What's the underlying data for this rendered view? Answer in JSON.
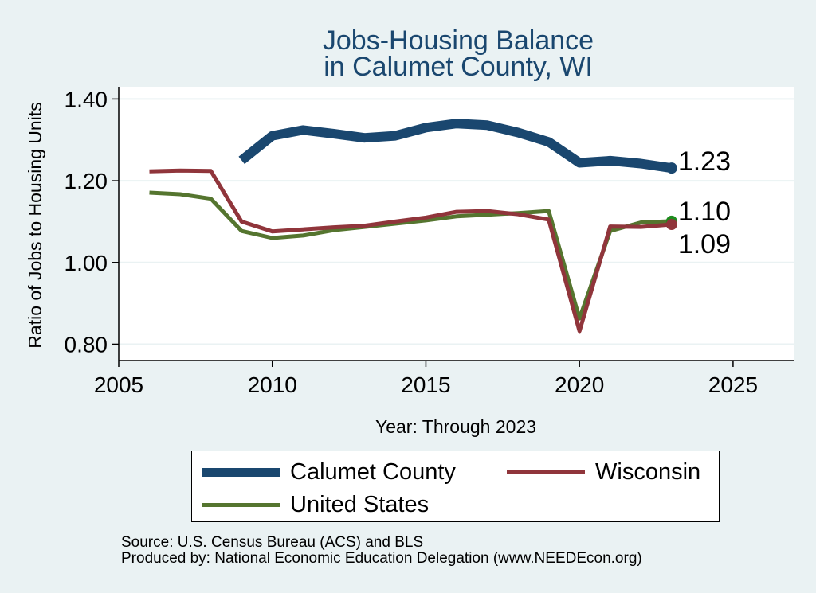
{
  "title_lines": [
    "Jobs-Housing Balance",
    "in Calumet County, WI"
  ],
  "source_lines": [
    "Source: U.S. Census Bureau (ACS) and BLS",
    "Produced by: National Economic Education Delegation (www.NEEDEcon.org)"
  ],
  "chart_data": {
    "type": "line",
    "title": "Jobs-Housing Balance in Calumet County, WI",
    "xlabel": "Year: Through 2023",
    "ylabel": "Ratio of Jobs to Housing Units",
    "xlim": [
      2005,
      2027
    ],
    "ylim": [
      0.76,
      1.43
    ],
    "x_ticks": [
      2005,
      2010,
      2015,
      2020,
      2025
    ],
    "y_ticks": [
      "0.80",
      "1.00",
      "1.20",
      "1.40"
    ],
    "grid": true,
    "legend_position": "bottom",
    "series": [
      {
        "name": "Calumet County",
        "color": "#1a476f",
        "end_label": "1.23",
        "points": [
          [
            2009,
            1.25
          ],
          [
            2010,
            1.31
          ],
          [
            2011,
            1.324
          ],
          [
            2012,
            1.315
          ],
          [
            2013,
            1.305
          ],
          [
            2014,
            1.31
          ],
          [
            2015,
            1.33
          ],
          [
            2016,
            1.34
          ],
          [
            2017,
            1.336
          ],
          [
            2018,
            1.318
          ],
          [
            2019,
            1.295
          ],
          [
            2020,
            1.244
          ],
          [
            2021,
            1.249
          ],
          [
            2022,
            1.242
          ],
          [
            2023,
            1.231
          ]
        ]
      },
      {
        "name": "Wisconsin",
        "color": "#90353b",
        "end_label": "1.09",
        "points": [
          [
            2006,
            1.223
          ],
          [
            2007,
            1.225
          ],
          [
            2008,
            1.224
          ],
          [
            2009,
            1.1
          ],
          [
            2010,
            1.076
          ],
          [
            2011,
            1.081
          ],
          [
            2012,
            1.086
          ],
          [
            2013,
            1.09
          ],
          [
            2014,
            1.1
          ],
          [
            2015,
            1.11
          ],
          [
            2016,
            1.124
          ],
          [
            2017,
            1.126
          ],
          [
            2018,
            1.118
          ],
          [
            2019,
            1.105
          ],
          [
            2020,
            0.832
          ],
          [
            2021,
            1.088
          ],
          [
            2022,
            1.087
          ],
          [
            2023,
            1.093
          ]
        ]
      },
      {
        "name": "United States",
        "color": "#55752f",
        "end_label": "1.10",
        "points": [
          [
            2006,
            1.171
          ],
          [
            2007,
            1.167
          ],
          [
            2008,
            1.156
          ],
          [
            2009,
            1.077
          ],
          [
            2010,
            1.06
          ],
          [
            2011,
            1.066
          ],
          [
            2012,
            1.079
          ],
          [
            2013,
            1.087
          ],
          [
            2014,
            1.095
          ],
          [
            2015,
            1.103
          ],
          [
            2016,
            1.113
          ],
          [
            2017,
            1.117
          ],
          [
            2018,
            1.121
          ],
          [
            2019,
            1.126
          ],
          [
            2020,
            0.863
          ],
          [
            2021,
            1.077
          ],
          [
            2022,
            1.098
          ],
          [
            2023,
            1.101
          ]
        ]
      }
    ]
  }
}
